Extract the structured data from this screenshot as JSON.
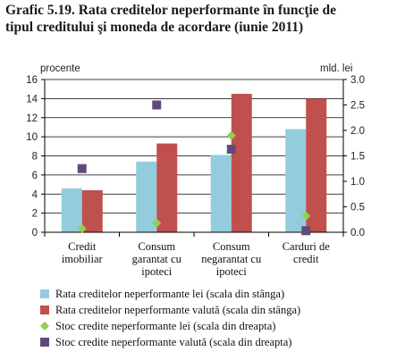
{
  "title_line1": "Grafic 5.19. Rata creditelor neperformante în funcţie de",
  "title_line2": "tipul creditului şi moneda de acordare (iunie 2011)",
  "colors": {
    "lei_bar": "#93CDDD",
    "valuta_bar": "#C0504D",
    "stoc_lei": "#92D050",
    "stoc_valuta": "#604A7B",
    "grid": "#000000"
  },
  "chart_data": {
    "type": "bar",
    "categories": [
      [
        "Credit",
        "imobiliar"
      ],
      [
        "Consum",
        "garantat cu",
        "ipoteci"
      ],
      [
        "Consum",
        "negarantat cu",
        "ipoteci"
      ],
      [
        "Carduri de",
        "credit"
      ]
    ],
    "y_left": {
      "label": "procente",
      "ylim": [
        0,
        16
      ],
      "ticks": [
        "0",
        "2",
        "4",
        "6",
        "8",
        "10",
        "12",
        "14",
        "16"
      ]
    },
    "y_right": {
      "label": "mld. lei",
      "ylim": [
        0,
        3
      ],
      "ticks": [
        "0.0",
        "0.5",
        "1.0",
        "1.5",
        "2.0",
        "2.5",
        "3.0"
      ]
    },
    "series": [
      {
        "name": "Rata creditelor neperformante lei (scala din stânga)",
        "kind": "bar",
        "axis": "left",
        "values": [
          4.6,
          7.4,
          8.1,
          10.8
        ]
      },
      {
        "name": "Rata creditelor neperformante valută (scala din stânga)",
        "kind": "bar",
        "axis": "left",
        "values": [
          4.4,
          9.3,
          14.5,
          14.0
        ]
      },
      {
        "name": "Stoc credite neperformante lei (scala din dreapta)",
        "kind": "marker",
        "marker": "diamond",
        "axis": "right",
        "values": [
          0.07,
          0.18,
          1.9,
          0.32
        ]
      },
      {
        "name": "Stoc credite neperformante valută (scala din dreapta)",
        "kind": "marker",
        "marker": "square",
        "axis": "right",
        "values": [
          1.25,
          2.5,
          1.63,
          0.03
        ]
      }
    ],
    "grid": true,
    "legend": "bottom"
  }
}
